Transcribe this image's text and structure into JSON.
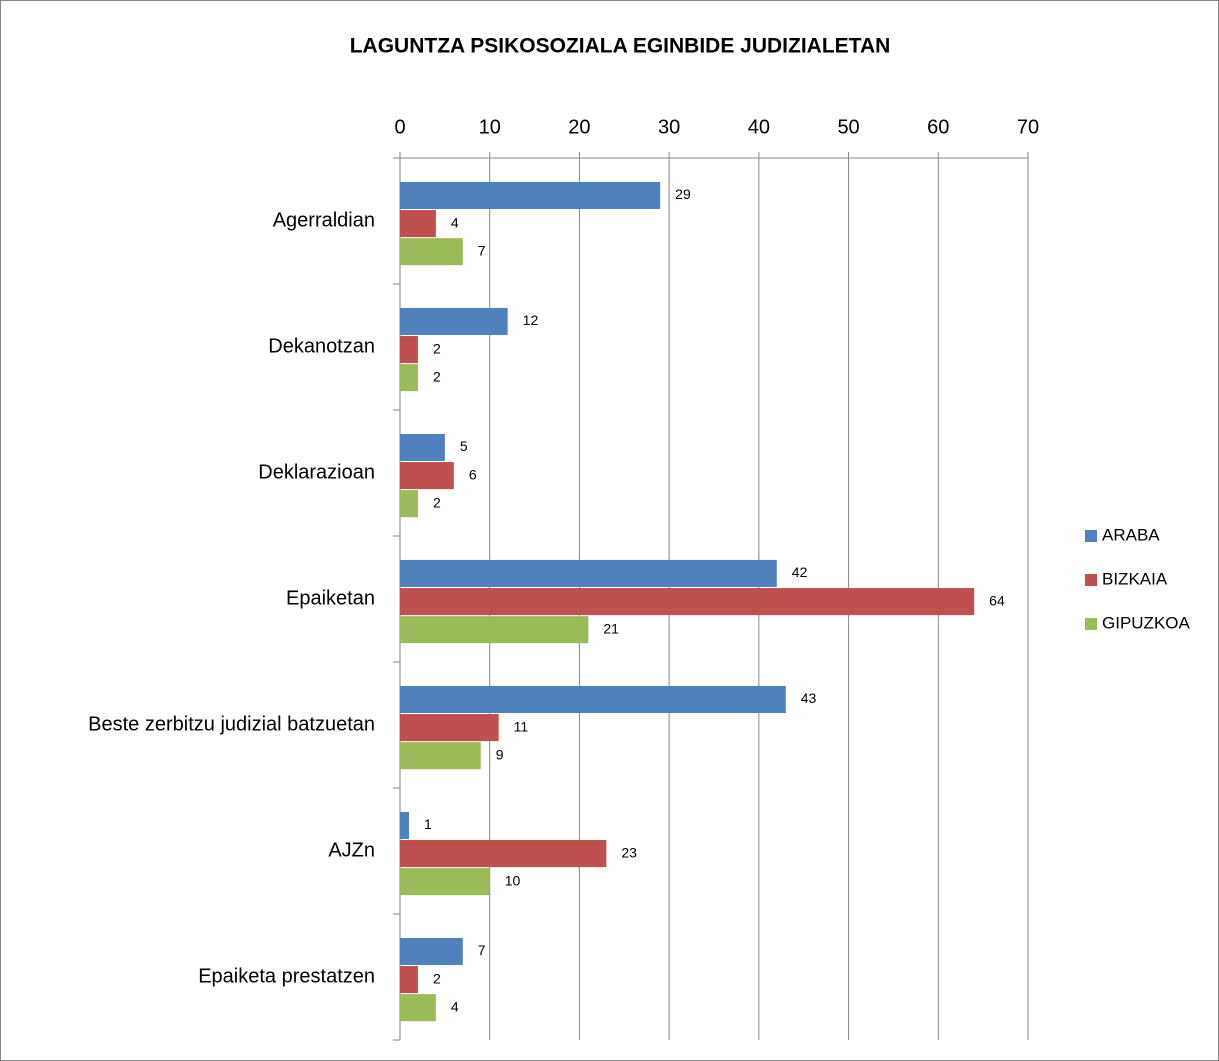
{
  "chart_data": {
    "type": "barh",
    "title": "LAGUNTZA PSIKOSOZIALA EGINBIDE JUDIZIALETAN",
    "categories": [
      "Agerraldian",
      "Dekanotzan",
      "Deklarazioan",
      "Epaiketan",
      "Beste zerbitzu judizial batzuetan",
      "AJZn",
      "Epaiketa prestatzen"
    ],
    "series": [
      {
        "name": "ARABA",
        "color": "#4f81bd",
        "values": [
          29,
          12,
          5,
          42,
          43,
          1,
          7
        ]
      },
      {
        "name": "BIZKAIA",
        "color": "#c0504d",
        "values": [
          4,
          2,
          6,
          64,
          11,
          23,
          2
        ]
      },
      {
        "name": "GIPUZKOA",
        "color": "#9bbb59",
        "values": [
          7,
          2,
          2,
          21,
          9,
          10,
          4
        ]
      }
    ],
    "xlim": [
      0,
      70
    ],
    "xticks": [
      0,
      10,
      20,
      30,
      40,
      50,
      60,
      70
    ],
    "grid": true,
    "legend": "right"
  }
}
